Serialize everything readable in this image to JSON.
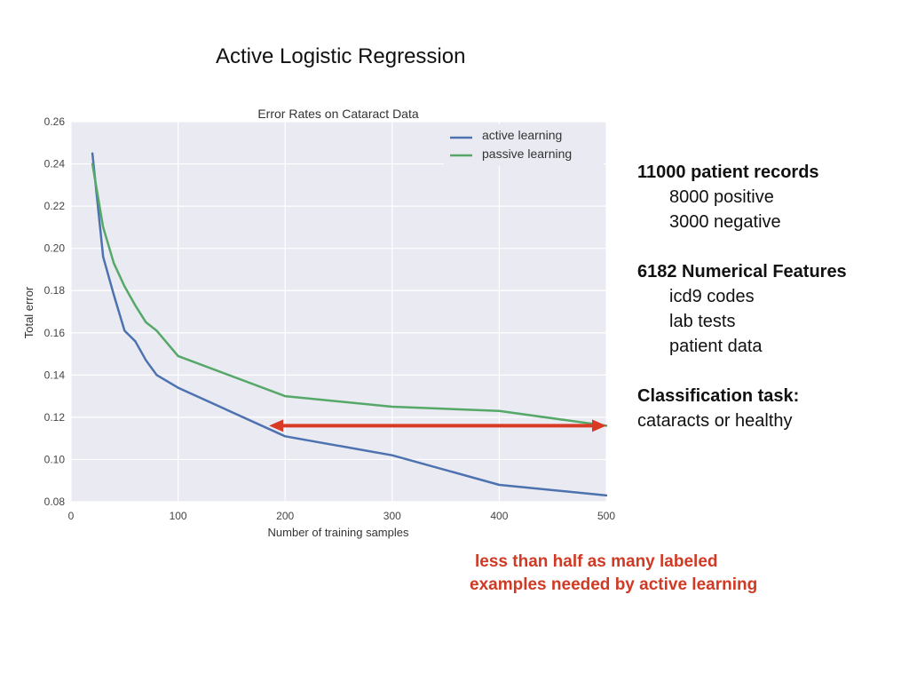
{
  "slide": {
    "title": "Active Logistic Regression"
  },
  "chart_data": {
    "type": "line",
    "title": "Error Rates on Cataract Data",
    "xlabel": "Number of training samples",
    "ylabel": "Total error",
    "xlim": [
      0,
      500
    ],
    "ylim": [
      0.08,
      0.26
    ],
    "xticks": [
      0,
      100,
      200,
      300,
      400,
      500
    ],
    "yticks": [
      0.08,
      0.1,
      0.12,
      0.14,
      0.16,
      0.18,
      0.2,
      0.22,
      0.24,
      0.26
    ],
    "ytick_labels": [
      "0.08",
      "0.10",
      "0.12",
      "0.14",
      "0.16",
      "0.18",
      "0.20",
      "0.22",
      "0.24",
      "0.26"
    ],
    "grid": true,
    "legend_position": "top-right",
    "series": [
      {
        "name": "active learning",
        "color": "#4c72b0",
        "x": [
          20,
          30,
          40,
          50,
          60,
          70,
          80,
          100,
          200,
          300,
          400,
          500
        ],
        "y": [
          0.245,
          0.196,
          0.178,
          0.161,
          0.156,
          0.147,
          0.14,
          0.134,
          0.111,
          0.102,
          0.088,
          0.083
        ]
      },
      {
        "name": "passive learning",
        "color": "#55a868",
        "x": [
          20,
          30,
          40,
          50,
          60,
          70,
          80,
          100,
          200,
          300,
          400,
          500
        ],
        "y": [
          0.24,
          0.21,
          0.193,
          0.182,
          0.173,
          0.165,
          0.161,
          0.149,
          0.13,
          0.125,
          0.123,
          0.116
        ]
      }
    ],
    "annotation": {
      "type": "double-arrow",
      "color": "#d93a25",
      "x_start": 185,
      "x_end": 500,
      "y": 0.116
    }
  },
  "info": {
    "records_heading": "11000 patient records",
    "records_items": [
      "8000 positive",
      "3000 negative"
    ],
    "features_heading": "6182 Numerical Features",
    "features_items": [
      "icd9 codes",
      "lab tests",
      "patient data"
    ],
    "task_heading": "Classification task:",
    "task_text": "cataracts or healthy"
  },
  "note": {
    "line1": "less than half as many labeled",
    "line2": "examples needed by active learning"
  }
}
